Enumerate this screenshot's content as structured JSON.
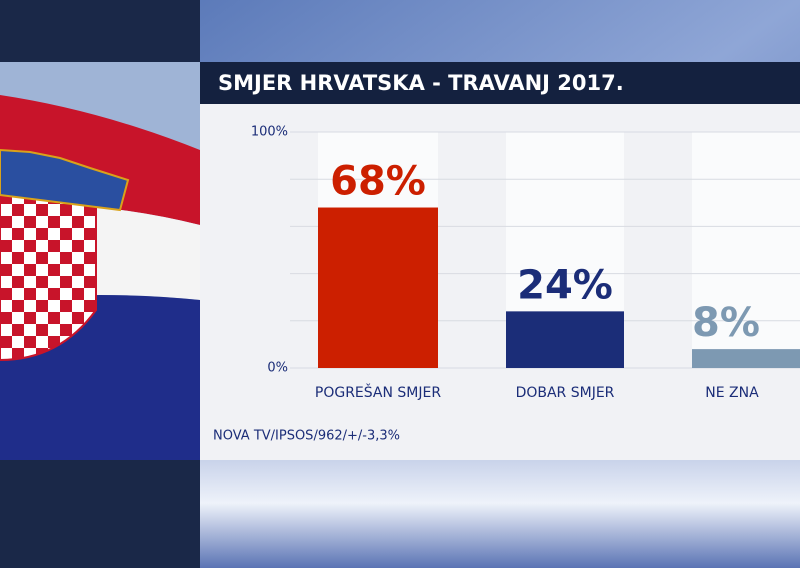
{
  "chart_data": {
    "type": "bar",
    "title": "SMJER HRVATSKA - TRAVANJ 2017.",
    "categories": [
      "POGREŠAN SMJER",
      "DOBAR SMJER",
      "NE ZNA"
    ],
    "values": [
      68,
      24,
      8
    ],
    "value_labels": [
      "68%",
      "24%",
      "8%"
    ],
    "colors": [
      "#cc1f00",
      "#1b2d78",
      "#7d99b2"
    ],
    "ylim": [
      0,
      100
    ],
    "yticks": [
      {
        "value": 0,
        "label": "0%"
      },
      {
        "value": 20,
        "label": null
      },
      {
        "value": 40,
        "label": null
      },
      {
        "value": 60,
        "label": null
      },
      {
        "value": 80,
        "label": null
      },
      {
        "value": 100,
        "label": "100%"
      }
    ],
    "grid": true,
    "source": "NOVA TV/IPSOS/962/+/-3,3%"
  }
}
